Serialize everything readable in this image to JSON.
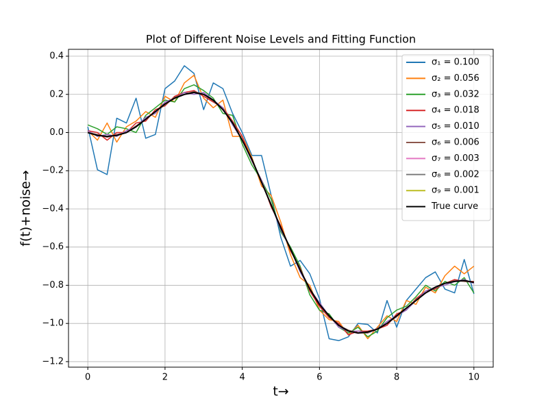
{
  "chart_data": {
    "type": "line",
    "title": "Plot of Different Noise Levels and Fitting Function",
    "xlabel": "t→",
    "ylabel": "f(t)+noise→",
    "x": [
      0,
      0.25,
      0.5,
      0.75,
      1,
      1.25,
      1.5,
      1.75,
      2,
      2.25,
      2.5,
      2.75,
      3,
      3.25,
      3.5,
      3.75,
      4,
      4.25,
      4.5,
      4.75,
      5,
      5.25,
      5.5,
      5.75,
      6,
      6.25,
      6.5,
      6.75,
      7,
      7.25,
      7.5,
      7.75,
      8,
      8.25,
      8.5,
      8.75,
      9,
      9.25,
      9.5,
      9.75,
      10
    ],
    "series": [
      {
        "name": "σ₁ = 0.100",
        "color": "#1f77b4",
        "values": [
          0.03,
          -0.195,
          -0.22,
          0.075,
          0.05,
          0.18,
          -0.03,
          -0.01,
          0.23,
          0.27,
          0.35,
          0.31,
          0.12,
          0.26,
          0.23,
          0.1,
          0.0,
          -0.12,
          -0.12,
          -0.33,
          -0.55,
          -0.7,
          -0.67,
          -0.74,
          -0.87,
          -1.08,
          -1.09,
          -1.07,
          -1.0,
          -1.005,
          -1.05,
          -0.88,
          -1.02,
          -0.88,
          -0.82,
          -0.76,
          -0.73,
          -0.82,
          -0.84,
          -0.665,
          -0.845
        ]
      },
      {
        "name": "σ₂ = 0.056",
        "color": "#ff7f0e",
        "values": [
          0.01,
          -0.04,
          0.05,
          -0.05,
          0.03,
          0.06,
          0.11,
          0.08,
          0.19,
          0.16,
          0.26,
          0.3,
          0.18,
          0.13,
          0.17,
          -0.02,
          -0.02,
          -0.13,
          -0.28,
          -0.33,
          -0.47,
          -0.64,
          -0.76,
          -0.8,
          -0.93,
          -0.98,
          -0.99,
          -1.06,
          -1.01,
          -1.08,
          -1.02,
          -0.96,
          -0.99,
          -0.88,
          -0.9,
          -0.81,
          -0.84,
          -0.75,
          -0.7,
          -0.74,
          -0.7
        ]
      },
      {
        "name": "σ₃ = 0.032",
        "color": "#2ca02c",
        "values": [
          0.04,
          0.02,
          -0.01,
          0.03,
          0.02,
          0.0,
          0.09,
          0.13,
          0.17,
          0.16,
          0.23,
          0.25,
          0.22,
          0.18,
          0.1,
          0.09,
          -0.06,
          -0.17,
          -0.25,
          -0.35,
          -0.52,
          -0.6,
          -0.7,
          -0.85,
          -0.93,
          -0.95,
          -1.02,
          -1.05,
          -1.02,
          -1.07,
          -1.04,
          -0.97,
          -0.93,
          -0.91,
          -0.86,
          -0.8,
          -0.83,
          -0.78,
          -0.8,
          -0.76,
          -0.84
        ]
      },
      {
        "name": "σ₄ = 0.018",
        "color": "#d62728",
        "values": [
          0.01,
          0.0,
          -0.04,
          0.0,
          0.0,
          0.05,
          0.06,
          0.12,
          0.14,
          0.19,
          0.21,
          0.22,
          0.19,
          0.16,
          0.13,
          0.06,
          -0.02,
          -0.15,
          -0.25,
          -0.39,
          -0.49,
          -0.62,
          -0.71,
          -0.83,
          -0.91,
          -0.97,
          -1.0,
          -1.06,
          -1.04,
          -1.04,
          -1.03,
          -1.01,
          -0.95,
          -0.93,
          -0.87,
          -0.83,
          -0.82,
          -0.79,
          -0.77,
          -0.78,
          -0.78
        ]
      },
      {
        "name": "σ₅ = 0.010",
        "color": "#9467bd",
        "values": [
          0.01,
          -0.02,
          -0.01,
          -0.02,
          0.01,
          0.03,
          0.08,
          0.1,
          0.16,
          0.18,
          0.21,
          0.2,
          0.21,
          0.17,
          0.13,
          0.04,
          -0.04,
          -0.15,
          -0.25,
          -0.38,
          -0.51,
          -0.61,
          -0.73,
          -0.82,
          -0.89,
          -0.96,
          -1.02,
          -1.04,
          -1.04,
          -1.05,
          -1.03,
          -0.99,
          -0.96,
          -0.93,
          -0.88,
          -0.83,
          -0.81,
          -0.8,
          -0.78,
          -0.77,
          -0.79
        ]
      },
      {
        "name": "σ₆ = 0.006",
        "color": "#8c564b",
        "values": [
          0.0,
          -0.01,
          -0.025,
          -0.01,
          0.0,
          0.035,
          0.07,
          0.11,
          0.145,
          0.185,
          0.2,
          0.215,
          0.2,
          0.165,
          0.12,
          0.055,
          -0.04,
          -0.145,
          -0.26,
          -0.375,
          -0.5,
          -0.615,
          -0.72,
          -0.815,
          -0.9,
          -0.965,
          -1.01,
          -1.035,
          -1.05,
          -1.05,
          -1.025,
          -1.0,
          -0.965,
          -0.92,
          -0.875,
          -0.84,
          -0.815,
          -0.79,
          -0.775,
          -0.78,
          -0.785
        ]
      },
      {
        "name": "σ₇ = 0.003",
        "color": "#e377c2",
        "values": [
          0.003,
          -0.015,
          -0.022,
          -0.013,
          0.002,
          0.03,
          0.068,
          0.11,
          0.152,
          0.18,
          0.198,
          0.21,
          0.202,
          0.17,
          0.118,
          0.05,
          -0.042,
          -0.14,
          -0.258,
          -0.38,
          -0.502,
          -0.61,
          -0.718,
          -0.82,
          -0.902,
          -0.96,
          -1.008,
          -1.04,
          -1.052,
          -1.045,
          -1.028,
          -1.0,
          -0.962,
          -0.92,
          -0.878,
          -0.84,
          -0.812,
          -0.79,
          -0.778,
          -0.775,
          -0.787
        ]
      },
      {
        "name": "σ₈ = 0.002",
        "color": "#7f7f7f",
        "values": [
          0.001,
          -0.014,
          -0.021,
          -0.015,
          0.001,
          0.031,
          0.07,
          0.109,
          0.15,
          0.181,
          0.2,
          0.209,
          0.2,
          0.171,
          0.12,
          0.049,
          -0.04,
          -0.141,
          -0.26,
          -0.379,
          -0.5,
          -0.611,
          -0.72,
          -0.819,
          -0.9,
          -0.961,
          -1.01,
          -1.039,
          -1.05,
          -1.046,
          -1.03,
          -1.001,
          -0.96,
          -0.919,
          -0.88,
          -0.841,
          -0.81,
          -0.789,
          -0.78,
          -0.776,
          -0.785
        ]
      },
      {
        "name": "σ₉ = 0.001",
        "color": "#bcbd22",
        "values": [
          0.0,
          -0.015,
          -0.02,
          -0.015,
          0.0,
          0.03,
          0.07,
          0.11,
          0.15,
          0.18,
          0.2,
          0.21,
          0.2,
          0.17,
          0.12,
          0.05,
          -0.04,
          -0.14,
          -0.26,
          -0.38,
          -0.5,
          -0.61,
          -0.72,
          -0.82,
          -0.9,
          -0.96,
          -1.01,
          -1.04,
          -1.05,
          -1.045,
          -1.03,
          -1.0,
          -0.96,
          -0.92,
          -0.88,
          -0.84,
          -0.81,
          -0.79,
          -0.78,
          -0.775,
          -0.785
        ]
      },
      {
        "name": "True curve",
        "color": "#000000",
        "values": [
          0.0,
          -0.015,
          -0.02,
          -0.015,
          0.0,
          0.03,
          0.07,
          0.11,
          0.15,
          0.18,
          0.2,
          0.21,
          0.2,
          0.17,
          0.12,
          0.05,
          -0.04,
          -0.14,
          -0.26,
          -0.38,
          -0.5,
          -0.61,
          -0.72,
          -0.82,
          -0.9,
          -0.96,
          -1.01,
          -1.04,
          -1.05,
          -1.045,
          -1.03,
          -1.0,
          -0.96,
          -0.92,
          -0.88,
          -0.84,
          -0.81,
          -0.79,
          -0.78,
          -0.775,
          -0.785
        ]
      }
    ],
    "xlim": [
      -0.5,
      10.5
    ],
    "xticks": [
      0,
      2,
      4,
      6,
      8,
      10
    ],
    "ylim": [
      -1.229,
      0.436
    ],
    "yticks": [
      {
        "value": -1.2,
        "label": "−1.2"
      },
      {
        "value": -1.0,
        "label": "−1.0"
      },
      {
        "value": -0.8,
        "label": "−0.8"
      },
      {
        "value": -0.6,
        "label": "−0.6"
      },
      {
        "value": -0.4,
        "label": "−0.4"
      },
      {
        "value": -0.2,
        "label": "−0.2"
      },
      {
        "value": 0,
        "label": "0.0"
      },
      {
        "value": 0.2,
        "label": "0.2"
      },
      {
        "value": 0.4,
        "label": "0.4"
      }
    ],
    "grid": true,
    "legend": "upper right"
  }
}
